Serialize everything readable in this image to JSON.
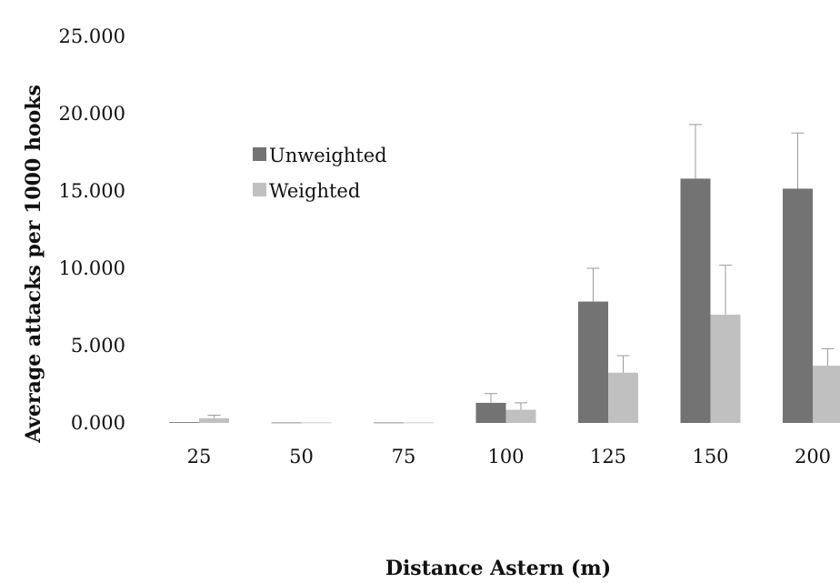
{
  "chart_data": {
    "type": "bar",
    "xlabel": "Distance Astern (m)",
    "ylabel": "Average attacks per 1000 hooks",
    "ylim": [
      0,
      25
    ],
    "yticks": [
      "0.000",
      "5.000",
      "10.000",
      "15.000",
      "20.000",
      "25.000"
    ],
    "categories": [
      "25",
      "50",
      "75",
      "100",
      "125",
      "150",
      "200"
    ],
    "series": [
      {
        "name": "Unweighted",
        "color": "#737373",
        "values": [
          0.05,
          0.03,
          0.03,
          1.3,
          7.85,
          15.8,
          15.15
        ],
        "errors": [
          0.0,
          0.0,
          0.0,
          0.6,
          2.15,
          3.5,
          3.6
        ]
      },
      {
        "name": "Weighted",
        "color": "#c0c0c0",
        "values": [
          0.3,
          0.03,
          0.03,
          0.85,
          3.25,
          7.0,
          3.7
        ],
        "errors": [
          0.2,
          0.0,
          0.0,
          0.45,
          1.1,
          3.2,
          1.1
        ]
      }
    ],
    "legend_position": "upper-left",
    "grid": false
  }
}
